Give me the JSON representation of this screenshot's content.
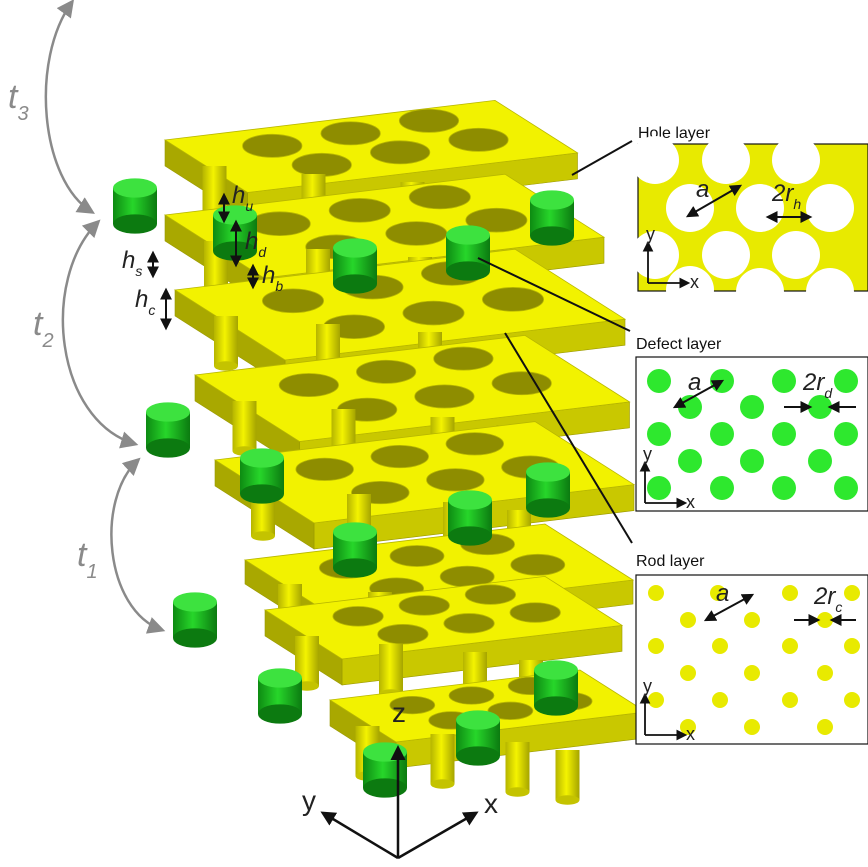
{
  "colors": {
    "yellow": "#f2f200",
    "yellow_dark": "#c9c800",
    "yellow_shadow": "#a9a800",
    "green": "#22cc22",
    "green_dark": "#0e8f14",
    "panel_yellow": "#e8ea00",
    "panel_green": "#2ee82e",
    "grey_arrow": "#8a8a8a"
  },
  "period_labels": {
    "t3_main": "t",
    "t3_sub": "3",
    "t2_main": "t",
    "t2_sub": "2",
    "t1_main": "t",
    "t1_sub": "1"
  },
  "height_labels": {
    "hu_main": "h",
    "hu_sub": "u",
    "hd_main": "h",
    "hd_sub": "d",
    "hb_main": "h",
    "hb_sub": "b",
    "hs_main": "h",
    "hs_sub": "s",
    "hc_main": "h",
    "hc_sub": "c"
  },
  "axes_3d": {
    "z": "z",
    "y": "y",
    "x": "x"
  },
  "panels": {
    "hole": {
      "title": "Hole layer",
      "a_label": "a",
      "r_main": "2r",
      "r_sub": "h",
      "axis_y": "y",
      "axis_x": "x"
    },
    "defect": {
      "title": "Defect layer",
      "a_label": "a",
      "r_main": "2r",
      "r_sub": "d",
      "axis_y": "y",
      "axis_x": "x"
    },
    "rod": {
      "title": "Rod layer",
      "a_label": "a",
      "r_main": "2r",
      "r_sub": "c",
      "axis_y": "y",
      "axis_x": "x"
    }
  }
}
